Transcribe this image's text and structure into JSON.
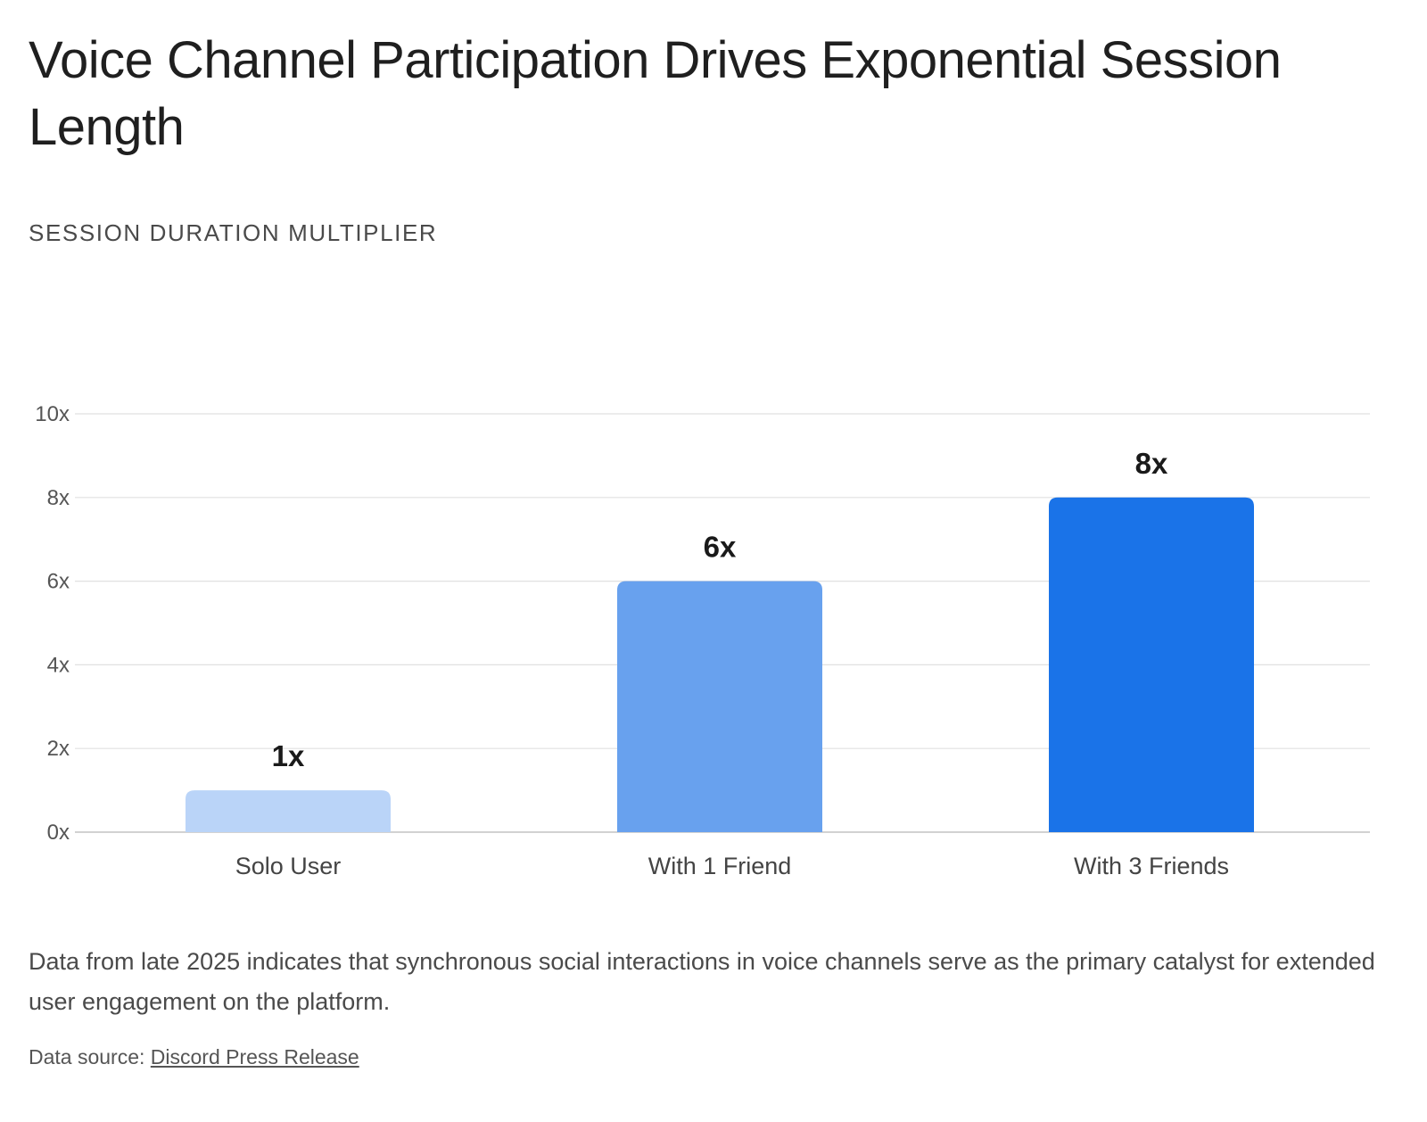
{
  "header": {
    "title": "Voice Channel Participation Drives Exponential Session Length",
    "subtitle": "SESSION DURATION MULTIPLIER"
  },
  "chart_data": {
    "type": "bar",
    "title": "Voice Channel Participation Drives Exponential Session Length",
    "ylabel": "SESSION DURATION MULTIPLIER",
    "xlabel": "",
    "categories": [
      "Solo User",
      "With 1 Friend",
      "With 3 Friends"
    ],
    "values": [
      1,
      6,
      8
    ],
    "data_labels": [
      "1x",
      "6x",
      "8x"
    ],
    "ylim": [
      0,
      10
    ],
    "yticks": [
      0,
      2,
      4,
      6,
      8,
      10
    ],
    "ytick_labels": [
      "0x",
      "2x",
      "4x",
      "6x",
      "8x",
      "10x"
    ],
    "grid": true,
    "legend": "none",
    "colors": [
      "#bad4f8",
      "#68a1ee",
      "#1a73e8"
    ]
  },
  "caption": {
    "text": "Data from late 2025 indicates that synchronous social interactions in voice channels serve as the primary catalyst for extended user engagement on the platform."
  },
  "source": {
    "prefix": "Data source:",
    "link_text": "Discord Press Release"
  },
  "colors": {
    "gridline": "#e0e0e0",
    "axis": "#c4c4c4"
  }
}
